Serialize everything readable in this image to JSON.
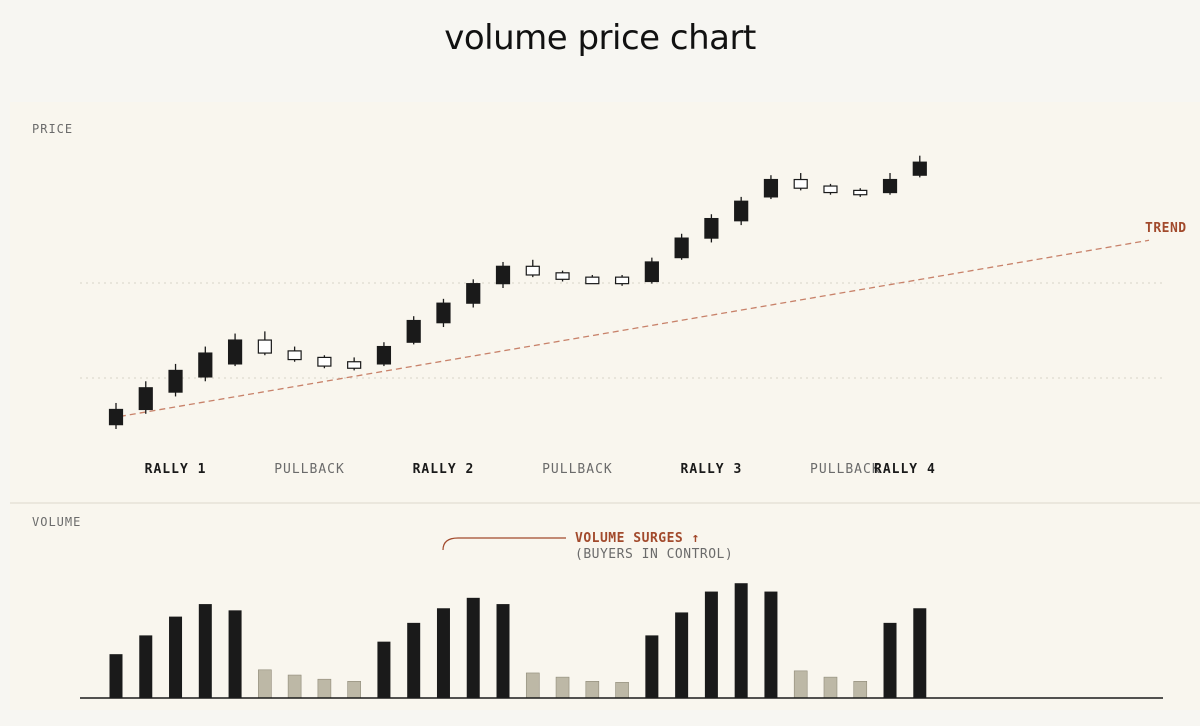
{
  "title": "volume price chart",
  "colors": {
    "background": "#f7f6f2",
    "panel": "#f9f6ee",
    "up_candle": "#1a1a1a",
    "down_candle": "#ffffff",
    "trend": "#c8826a",
    "accent_text": "#a24a2c",
    "rally_volume": "#1a1a1a",
    "pullback_volume": "#bdb8a6",
    "grid": "#d8d4c8",
    "muted_text": "#6b6b6b"
  },
  "chart_data": [
    {
      "type": "candlestick",
      "ylabel": "PRICE",
      "series": [
        {
          "dir": "up",
          "open": 2,
          "close": 9,
          "high": 12,
          "low": 0
        },
        {
          "dir": "up",
          "open": 9,
          "close": 19,
          "high": 22,
          "low": 7
        },
        {
          "dir": "up",
          "open": 17,
          "close": 27,
          "high": 30,
          "low": 15
        },
        {
          "dir": "up",
          "open": 24,
          "close": 35,
          "high": 38,
          "low": 22
        },
        {
          "dir": "up",
          "open": 30,
          "close": 41,
          "high": 44,
          "low": 29
        },
        {
          "dir": "down",
          "open": 41,
          "close": 35,
          "high": 45,
          "low": 34
        },
        {
          "dir": "down",
          "open": 36,
          "close": 32,
          "high": 38,
          "low": 31
        },
        {
          "dir": "down",
          "open": 33,
          "close": 29,
          "high": 34,
          "low": 28
        },
        {
          "dir": "down",
          "open": 31,
          "close": 28,
          "high": 33,
          "low": 27
        },
        {
          "dir": "up",
          "open": 30,
          "close": 38,
          "high": 40,
          "low": 29
        },
        {
          "dir": "up",
          "open": 40,
          "close": 50,
          "high": 52,
          "low": 39
        },
        {
          "dir": "up",
          "open": 49,
          "close": 58,
          "high": 60,
          "low": 47
        },
        {
          "dir": "up",
          "open": 58,
          "close": 67,
          "high": 69,
          "low": 56
        },
        {
          "dir": "up",
          "open": 67,
          "close": 75,
          "high": 77,
          "low": 65
        },
        {
          "dir": "down",
          "open": 75,
          "close": 71,
          "high": 78,
          "low": 70
        },
        {
          "dir": "down",
          "open": 72,
          "close": 69,
          "high": 73,
          "low": 68
        },
        {
          "dir": "down",
          "open": 70,
          "close": 67,
          "high": 71,
          "low": 67
        },
        {
          "dir": "down",
          "open": 70,
          "close": 67,
          "high": 71,
          "low": 66
        },
        {
          "dir": "up",
          "open": 68,
          "close": 77,
          "high": 79,
          "low": 67
        },
        {
          "dir": "up",
          "open": 79,
          "close": 88,
          "high": 90,
          "low": 78
        },
        {
          "dir": "up",
          "open": 88,
          "close": 97,
          "high": 99,
          "low": 86
        },
        {
          "dir": "up",
          "open": 96,
          "close": 105,
          "high": 107,
          "low": 94
        },
        {
          "dir": "up",
          "open": 107,
          "close": 115,
          "high": 117,
          "low": 106
        },
        {
          "dir": "down",
          "open": 115,
          "close": 111,
          "high": 118,
          "low": 110
        },
        {
          "dir": "down",
          "open": 112,
          "close": 109,
          "high": 113,
          "low": 108
        },
        {
          "dir": "down",
          "open": 110,
          "close": 108,
          "high": 111,
          "low": 107
        },
        {
          "dir": "up",
          "open": 109,
          "close": 115,
          "high": 118,
          "low": 108
        },
        {
          "dir": "up",
          "open": 117,
          "close": 123,
          "high": 126,
          "low": 116
        }
      ],
      "ylim": [
        -6,
        130
      ],
      "phase_labels": [
        {
          "text": "RALLY 1",
          "kind": "rally",
          "center_index": 2
        },
        {
          "text": "PULLBACK",
          "kind": "pullback",
          "center_index": 6.5
        },
        {
          "text": "RALLY 2",
          "kind": "rally",
          "center_index": 11
        },
        {
          "text": "PULLBACK",
          "kind": "pullback",
          "center_index": 15.5
        },
        {
          "text": "RALLY 3",
          "kind": "rally",
          "center_index": 20
        },
        {
          "text": "PULLBACK",
          "kind": "pullback",
          "center_index": 24.5
        },
        {
          "text": "RALLY 4",
          "kind": "rally",
          "center_index": 26.5
        }
      ],
      "trend": {
        "label": "TREND",
        "from": {
          "index": -0.2,
          "price": 5
        },
        "to": {
          "index": 34.7,
          "price": 87
        }
      }
    },
    {
      "type": "bar",
      "ylabel": "VOLUME",
      "values": [
        42,
        60,
        78,
        90,
        84,
        27,
        22,
        18,
        16,
        54,
        72,
        86,
        96,
        90,
        24,
        20,
        16,
        15,
        60,
        82,
        102,
        110,
        102,
        26,
        20,
        16,
        72,
        86
      ],
      "kinds": [
        "rally",
        "rally",
        "rally",
        "rally",
        "rally",
        "pullback",
        "pullback",
        "pullback",
        "pullback",
        "rally",
        "rally",
        "rally",
        "rally",
        "rally",
        "pullback",
        "pullback",
        "pullback",
        "pullback",
        "rally",
        "rally",
        "rally",
        "rally",
        "rally",
        "pullback",
        "pullback",
        "pullback",
        "rally",
        "rally"
      ],
      "ylim": [
        0,
        115
      ],
      "annotation": {
        "line1": "VOLUME SURGES ↑",
        "line2": "(BUYERS IN CONTROL)"
      }
    }
  ]
}
